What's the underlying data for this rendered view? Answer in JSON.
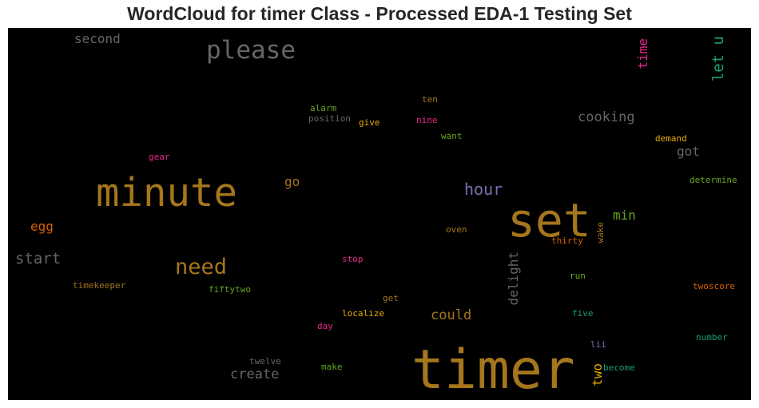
{
  "title": "WordCloud for timer Class - Processed EDA-1 Testing Set",
  "colors": {
    "background": "#000000",
    "title": "#262626",
    "palette": [
      "#a6761d",
      "#666666",
      "#1b9e77",
      "#d95f02",
      "#7570b3",
      "#e7298a",
      "#66a61e",
      "#e6ab02"
    ]
  },
  "chart_data": {
    "type": "wordcloud",
    "words": [
      {
        "text": "timer",
        "color": "#a6761d",
        "orient": "h"
      },
      {
        "text": "set",
        "color": "#a6761d",
        "orient": "h"
      },
      {
        "text": "minute",
        "color": "#a6761d",
        "orient": "h"
      },
      {
        "text": "please",
        "color": "#666666",
        "orient": "h"
      },
      {
        "text": "need",
        "color": "#a6761d",
        "orient": "h"
      },
      {
        "text": "hour",
        "color": "#7570b3",
        "orient": "h"
      },
      {
        "text": "start",
        "color": "#666666",
        "orient": "h"
      },
      {
        "text": "cooking",
        "color": "#666666",
        "orient": "h"
      },
      {
        "text": "create",
        "color": "#666666",
        "orient": "h"
      },
      {
        "text": "could",
        "color": "#a6761d",
        "orient": "h"
      },
      {
        "text": "second",
        "color": "#666666",
        "orient": "h"
      },
      {
        "text": "let u",
        "color": "#1b9e77",
        "orient": "v"
      },
      {
        "text": "time",
        "color": "#e7298a",
        "orient": "v"
      },
      {
        "text": "delight",
        "color": "#666666",
        "orient": "v"
      },
      {
        "text": "two",
        "color": "#e6ab02",
        "orient": "v"
      },
      {
        "text": "egg",
        "color": "#d95f02",
        "orient": "h"
      },
      {
        "text": "go",
        "color": "#a6761d",
        "orient": "h"
      },
      {
        "text": "min",
        "color": "#66a61e",
        "orient": "h"
      },
      {
        "text": "got",
        "color": "#666666",
        "orient": "h"
      },
      {
        "text": "alarm",
        "color": "#66a61e",
        "orient": "h"
      },
      {
        "text": "position",
        "color": "#666666",
        "orient": "h"
      },
      {
        "text": "give",
        "color": "#e6ab02",
        "orient": "h"
      },
      {
        "text": "nine",
        "color": "#e7298a",
        "orient": "h"
      },
      {
        "text": "ten",
        "color": "#a6761d",
        "orient": "h"
      },
      {
        "text": "want",
        "color": "#66a61e",
        "orient": "h"
      },
      {
        "text": "demand",
        "color": "#e6ab02",
        "orient": "h"
      },
      {
        "text": "gear",
        "color": "#e7298a",
        "orient": "h"
      },
      {
        "text": "determine",
        "color": "#66a61e",
        "orient": "h"
      },
      {
        "text": "oven",
        "color": "#a6761d",
        "orient": "h"
      },
      {
        "text": "thirty",
        "color": "#d95f02",
        "orient": "h"
      },
      {
        "text": "wake",
        "color": "#a6761d",
        "orient": "v"
      },
      {
        "text": "stop",
        "color": "#e7298a",
        "orient": "h"
      },
      {
        "text": "timekeeper",
        "color": "#a6761d",
        "orient": "h"
      },
      {
        "text": "fiftytwo",
        "color": "#66a61e",
        "orient": "h"
      },
      {
        "text": "run",
        "color": "#66a61e",
        "orient": "h"
      },
      {
        "text": "twoscore",
        "color": "#d95f02",
        "orient": "h"
      },
      {
        "text": "get",
        "color": "#a6761d",
        "orient": "h"
      },
      {
        "text": "localize",
        "color": "#e6ab02",
        "orient": "h"
      },
      {
        "text": "five",
        "color": "#1b9e77",
        "orient": "h"
      },
      {
        "text": "day",
        "color": "#e7298a",
        "orient": "h"
      },
      {
        "text": "number",
        "color": "#1b9e77",
        "orient": "h"
      },
      {
        "text": "lii",
        "color": "#7570b3",
        "orient": "h"
      },
      {
        "text": "twelve",
        "color": "#666666",
        "orient": "h"
      },
      {
        "text": "make",
        "color": "#66a61e",
        "orient": "h"
      },
      {
        "text": "become",
        "color": "#1b9e77",
        "orient": "h"
      }
    ]
  }
}
